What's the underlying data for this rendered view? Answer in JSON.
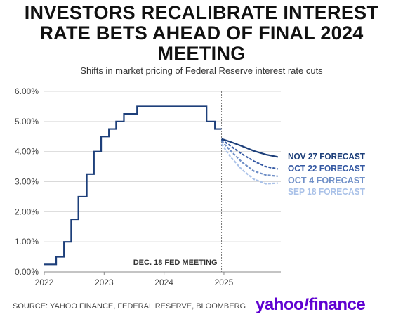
{
  "header": {
    "title": "INVESTORS RECALIBRATE INTEREST RATE BETS AHEAD OF FINAL 2024 MEETING",
    "subtitle": "Shifts in market pricing of Federal Reserve interest rate cuts"
  },
  "footer": {
    "source": "SOURCE: YAHOO FINANCE, FEDERAL RESERVE, BLOOMBERG",
    "brand_yahoo": "yahoo",
    "brand_bang": "!",
    "brand_finance": "finance"
  },
  "colors": {
    "history": "#1d3f7a",
    "nov27": "#1d3f7a",
    "oct22": "#3559a3",
    "oct4": "#6f8fc7",
    "sep18": "#a9c1e8",
    "brand": "#5f01d1"
  },
  "chart_data": {
    "type": "line",
    "xlim": [
      2022.0,
      2025.95
    ],
    "ylim": [
      0,
      6
    ],
    "yticks": [
      "0.00%",
      "1.00%",
      "2.00%",
      "3.00%",
      "4.00%",
      "5.00%",
      "6.00%"
    ],
    "ytick_values": [
      0,
      1,
      2,
      3,
      4,
      5,
      6
    ],
    "xticks": [
      "2022",
      "2023",
      "2024",
      "2025"
    ],
    "xtick_values": [
      2022,
      2023,
      2024,
      2025
    ],
    "grid": "horizontal",
    "annotation": {
      "text": "DEC. 18 FED MEETING",
      "x": 2024.96
    },
    "history": {
      "style": "step",
      "points": [
        [
          2022.0,
          0.25
        ],
        [
          2022.2,
          0.5
        ],
        [
          2022.33,
          1.0
        ],
        [
          2022.45,
          1.75
        ],
        [
          2022.57,
          2.5
        ],
        [
          2022.71,
          3.25
        ],
        [
          2022.83,
          4.0
        ],
        [
          2022.95,
          4.5
        ],
        [
          2023.08,
          4.75
        ],
        [
          2023.2,
          5.0
        ],
        [
          2023.33,
          5.25
        ],
        [
          2023.55,
          5.5
        ],
        [
          2024.71,
          5.0
        ],
        [
          2024.85,
          4.75
        ],
        [
          2024.96,
          4.75
        ]
      ]
    },
    "series": [
      {
        "name": "NOV 27 FORECAST",
        "style": "solid",
        "x": [
          2024.96,
          2025.1,
          2025.3,
          2025.5,
          2025.7,
          2025.9
        ],
        "y": [
          4.42,
          4.33,
          4.18,
          4.02,
          3.9,
          3.82
        ]
      },
      {
        "name": "OCT 22 FORECAST",
        "style": "dashed",
        "x": [
          2024.96,
          2025.1,
          2025.3,
          2025.5,
          2025.7,
          2025.9
        ],
        "y": [
          4.4,
          4.2,
          3.92,
          3.68,
          3.5,
          3.42
        ]
      },
      {
        "name": "OCT 4 FORECAST",
        "style": "dashed",
        "x": [
          2024.96,
          2025.1,
          2025.3,
          2025.5,
          2025.7,
          2025.9
        ],
        "y": [
          4.35,
          4.05,
          3.65,
          3.35,
          3.22,
          3.18
        ]
      },
      {
        "name": "SEP 18 FORECAST",
        "style": "dashed",
        "x": [
          2024.96,
          2025.1,
          2025.3,
          2025.5,
          2025.7,
          2025.9
        ],
        "y": [
          4.25,
          3.85,
          3.4,
          3.08,
          2.93,
          2.95
        ]
      }
    ]
  }
}
